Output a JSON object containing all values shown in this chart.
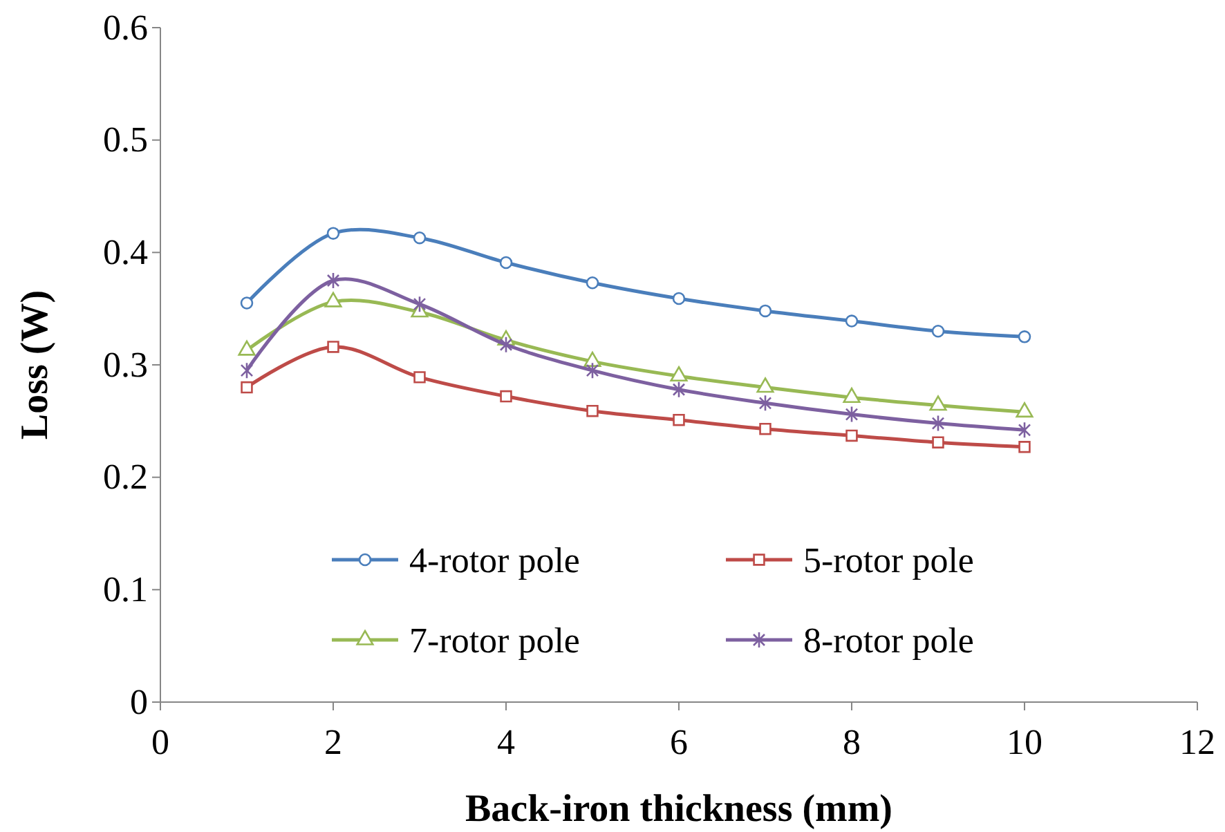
{
  "chart_data": {
    "type": "line",
    "xlabel": "Back-iron thickness (mm)",
    "ylabel": "Loss (W)",
    "xlim": [
      0,
      12
    ],
    "xticks": [
      0,
      2,
      4,
      6,
      8,
      10,
      12
    ],
    "ylim": [
      0,
      0.6
    ],
    "yticks": [
      0,
      0.1,
      0.2,
      0.3,
      0.4,
      0.5,
      0.6
    ],
    "x": [
      1,
      2,
      3,
      4,
      5,
      6,
      7,
      8,
      9,
      10
    ],
    "grid": false,
    "legend": "bottom",
    "line_style": "solid",
    "series": [
      {
        "name": "4-rotor pole",
        "color": "#4a7ebb",
        "marker": "circle",
        "values": [
          0.355,
          0.417,
          0.413,
          0.391,
          0.373,
          0.359,
          0.348,
          0.339,
          0.33,
          0.325
        ]
      },
      {
        "name": "5-rotor pole",
        "color": "#be4b48",
        "marker": "square",
        "values": [
          0.28,
          0.316,
          0.289,
          0.272,
          0.259,
          0.251,
          0.243,
          0.237,
          0.231,
          0.227
        ]
      },
      {
        "name": "7-rotor pole",
        "color": "#98b954",
        "marker": "triangle",
        "values": [
          0.313,
          0.356,
          0.347,
          0.322,
          0.303,
          0.29,
          0.28,
          0.271,
          0.264,
          0.258
        ]
      },
      {
        "name": "8-rotor pole",
        "color": "#7d60a0",
        "marker": "cross",
        "values": [
          0.295,
          0.375,
          0.354,
          0.318,
          0.295,
          0.278,
          0.266,
          0.256,
          0.248,
          0.242
        ]
      }
    ]
  }
}
